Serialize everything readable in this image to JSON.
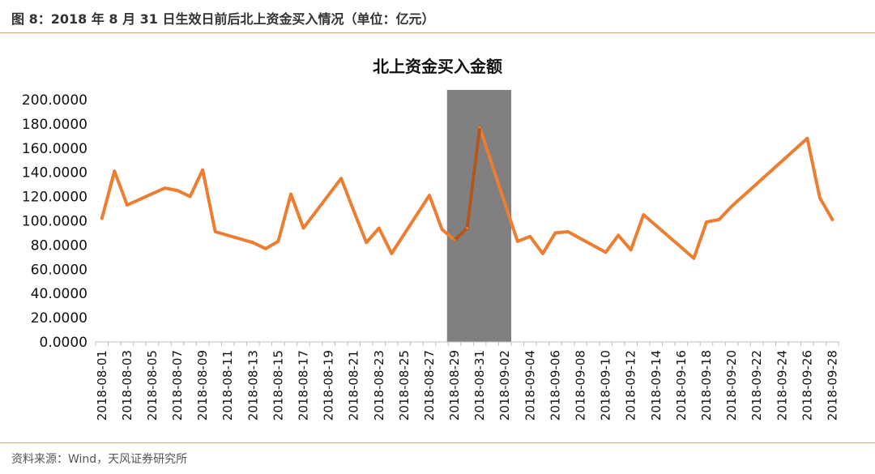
{
  "header": {
    "caption": "图 8：2018 年 8 月 31 日生效日前后北上资金买入情况（单位：亿元）"
  },
  "footer": {
    "source": "资料来源：Wind，天风证券研究所"
  },
  "colors": {
    "line": "#ED7D31",
    "highlight": "#808080",
    "rule": "#D9A679"
  },
  "chart_data": {
    "type": "line",
    "title": "北上资金买入金额",
    "xlabel": "",
    "ylabel": "",
    "ylim": [
      0,
      200
    ],
    "yticks": [
      "0.0000",
      "20.0000",
      "40.0000",
      "60.0000",
      "80.0000",
      "100.0000",
      "120.0000",
      "140.0000",
      "160.0000",
      "180.0000",
      "200.0000"
    ],
    "xticks": [
      "2018-08-01",
      "2018-08-03",
      "2018-08-05",
      "2018-08-07",
      "2018-08-09",
      "2018-08-11",
      "2018-08-13",
      "2018-08-15",
      "2018-08-17",
      "2018-08-19",
      "2018-08-21",
      "2018-08-23",
      "2018-08-25",
      "2018-08-27",
      "2018-08-29",
      "2018-08-31",
      "2018-09-02",
      "2018-09-04",
      "2018-09-06",
      "2018-09-08",
      "2018-09-10",
      "2018-09-12",
      "2018-09-14",
      "2018-09-16",
      "2018-09-18",
      "2018-09-20",
      "2018-09-22",
      "2018-09-24",
      "2018-09-26",
      "2018-09-28"
    ],
    "grid": false,
    "legend": "none",
    "highlight_range": [
      "2018-08-29",
      "2018-09-03"
    ],
    "series": [
      {
        "x": [
          "2018-08-01",
          "2018-08-02",
          "2018-08-03",
          "2018-08-06",
          "2018-08-07",
          "2018-08-08",
          "2018-08-09",
          "2018-08-10",
          "2018-08-13",
          "2018-08-14",
          "2018-08-15",
          "2018-08-16",
          "2018-08-17",
          "2018-08-20",
          "2018-08-21",
          "2018-08-22",
          "2018-08-23",
          "2018-08-24",
          "2018-08-27",
          "2018-08-28",
          "2018-08-29",
          "2018-08-30",
          "2018-08-31",
          "2018-09-03",
          "2018-09-04",
          "2018-09-05",
          "2018-09-06",
          "2018-09-07",
          "2018-09-10",
          "2018-09-11",
          "2018-09-12",
          "2018-09-13",
          "2018-09-17",
          "2018-09-18",
          "2018-09-19",
          "2018-09-20",
          "2018-09-26",
          "2018-09-27",
          "2018-09-28"
        ],
        "values": [
          102,
          141,
          113,
          127,
          125,
          120,
          142,
          91,
          82,
          77,
          83,
          122,
          94,
          135,
          108,
          82,
          94,
          73,
          121,
          93,
          84,
          94,
          177,
          83,
          87,
          73,
          90,
          91,
          74,
          88,
          76,
          105,
          69,
          99,
          101,
          112,
          168,
          119,
          101
        ]
      }
    ]
  }
}
